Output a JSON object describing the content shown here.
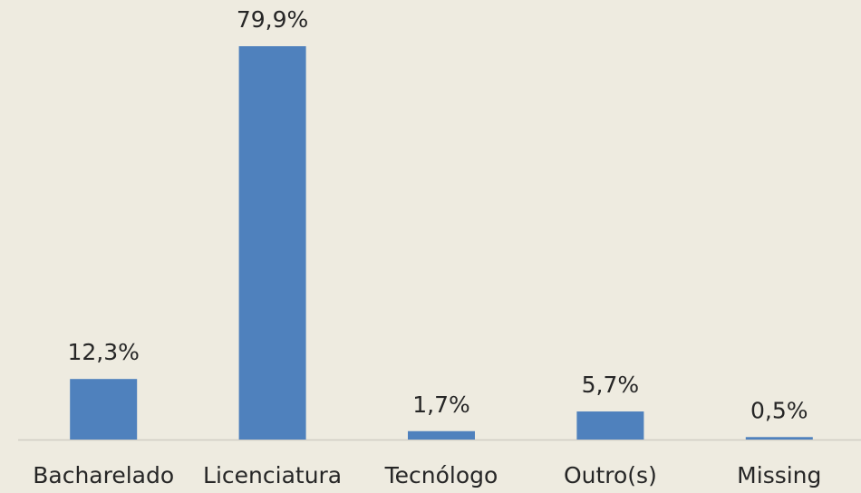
{
  "chart_data": {
    "type": "bar",
    "categories": [
      "Bacharelado",
      "Licenciatura",
      "Tecnólogo",
      "Outro(s)",
      "Missing"
    ],
    "values": [
      12.3,
      79.9,
      1.7,
      5.7,
      0.5
    ],
    "value_labels": [
      "12,3%",
      "79,9%",
      "1,7%",
      "5,7%",
      "0,5%"
    ],
    "color": "#4f81bd"
  }
}
